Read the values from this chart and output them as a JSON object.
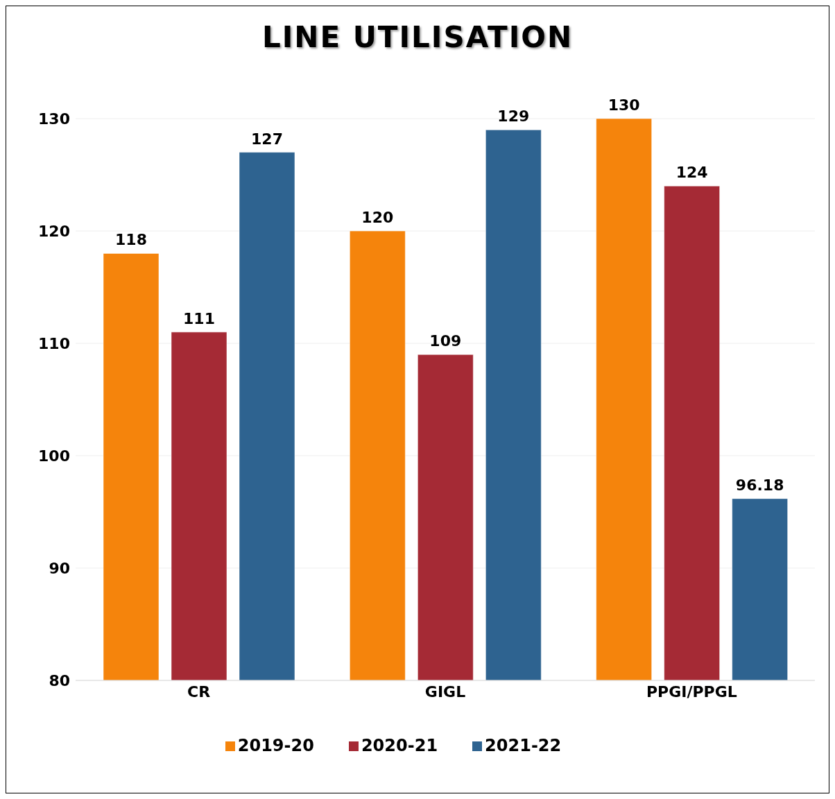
{
  "chart_data": {
    "type": "bar",
    "title": "LINE UTILISATION",
    "categories": [
      "CR",
      "GIGL",
      "PPGI/PPGL"
    ],
    "series": [
      {
        "name": "2019-20",
        "color": "#f5840c",
        "values": [
          118,
          120,
          130
        ]
      },
      {
        "name": "2020-21",
        "color": "#a52a35",
        "values": [
          111,
          109,
          124
        ]
      },
      {
        "name": "2021-22",
        "color": "#2e6390",
        "values": [
          127,
          129,
          96.18
        ]
      }
    ],
    "ylim": [
      80,
      130
    ],
    "yticks": [
      80,
      90,
      100,
      110,
      120,
      130
    ],
    "grid": "y",
    "legend": "bottom",
    "data_labels": true
  }
}
